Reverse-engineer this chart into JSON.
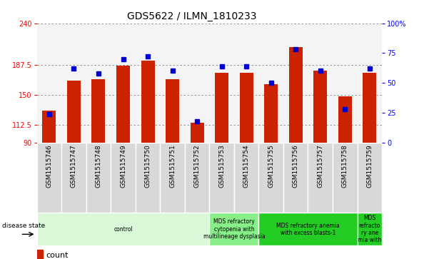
{
  "title": "GDS5622 / ILMN_1810233",
  "samples": [
    "GSM1515746",
    "GSM1515747",
    "GSM1515748",
    "GSM1515749",
    "GSM1515750",
    "GSM1515751",
    "GSM1515752",
    "GSM1515753",
    "GSM1515754",
    "GSM1515755",
    "GSM1515756",
    "GSM1515757",
    "GSM1515758",
    "GSM1515759"
  ],
  "counts": [
    130,
    168,
    170,
    187,
    193,
    170,
    115,
    178,
    178,
    163,
    210,
    180,
    148,
    178
  ],
  "percentile_ranks": [
    24,
    62,
    58,
    70,
    72,
    60,
    18,
    64,
    64,
    50,
    78,
    60,
    28,
    62
  ],
  "ymin": 90,
  "ymax": 240,
  "yticks": [
    90,
    112.5,
    150,
    187.5,
    240
  ],
  "ytick_labels": [
    "90",
    "112.5",
    "150",
    "187.5",
    "240"
  ],
  "y2min": 0,
  "y2max": 100,
  "y2ticks": [
    0,
    25,
    50,
    75,
    100
  ],
  "y2tick_labels": [
    "0",
    "25",
    "50",
    "75",
    "100%"
  ],
  "bar_color": "#cc2200",
  "dot_color": "#0000cc",
  "bar_width": 0.55,
  "grid_color": "#888888",
  "plot_bg": "#f4f4f4",
  "disease_groups": [
    {
      "label": "control",
      "start": 0,
      "end": 7,
      "color": "#d8f8d8"
    },
    {
      "label": "MDS refractory\ncytopenia with\nmultilineage dysplasia",
      "start": 7,
      "end": 9,
      "color": "#88ee88"
    },
    {
      "label": "MDS refractory anemia\nwith excess blasts-1",
      "start": 9,
      "end": 13,
      "color": "#22cc22"
    },
    {
      "label": "MDS\nrefracto\nry ane\nmia with",
      "start": 13,
      "end": 14,
      "color": "#22cc22"
    }
  ],
  "title_fontsize": 10,
  "tick_fontsize": 7,
  "label_fontsize": 8,
  "bar_bottom": 90
}
